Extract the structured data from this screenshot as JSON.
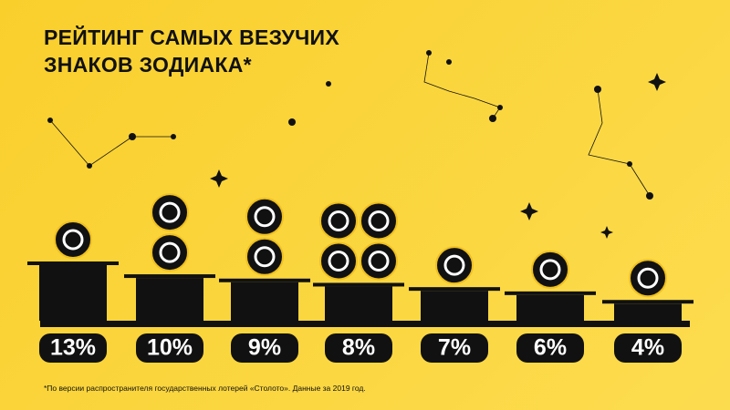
{
  "chart_data": {
    "type": "bar",
    "title": "РЕЙТИНГ САМЫХ ВЕЗУЧИХ ЗНАКОВ ЗОДИАКА*",
    "categories": [
      null,
      null,
      null,
      null,
      null,
      null,
      null
    ],
    "values": [
      13,
      10,
      9,
      8,
      7,
      6,
      4
    ],
    "value_labels": [
      "13%",
      "10%",
      "9%",
      "8%",
      "7%",
      "6%",
      "4%"
    ],
    "color": "#111111",
    "footnote": "*По версии распространителя государственных лотерей «Столото». Данные за 2019 год."
  }
}
